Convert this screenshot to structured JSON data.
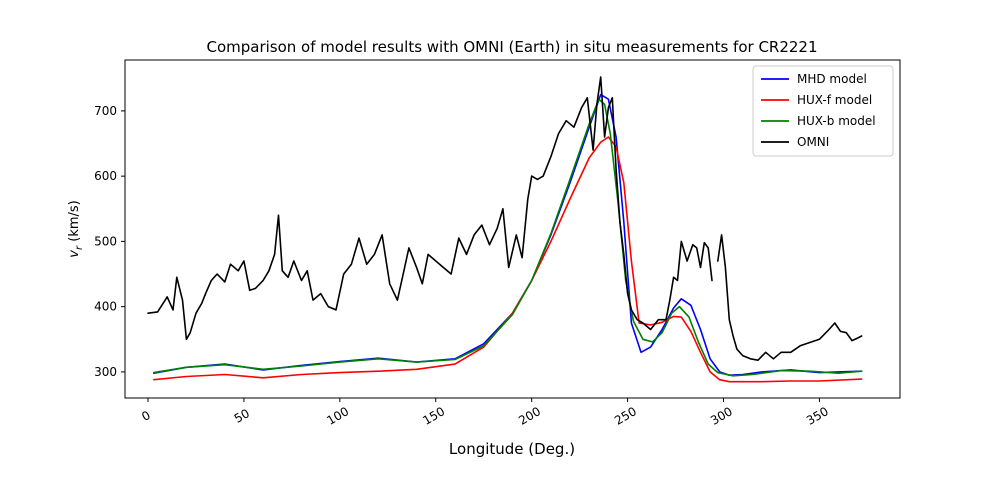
{
  "chart_data": {
    "type": "line",
    "title": "Comparison of model results with OMNI (Earth) in situ measurements for CR2221",
    "xlabel": "Longitude (Deg.)",
    "ylabel": "v_r (km/s)",
    "ylabel_main": "v",
    "ylabel_sub": "r",
    "ylabel_rest": " (km/s)",
    "xlim": [
      -12,
      392
    ],
    "ylim": [
      260,
      778
    ],
    "xticks": [
      0,
      50,
      100,
      150,
      200,
      250,
      300,
      350
    ],
    "yticks": [
      300,
      400,
      500,
      600,
      700
    ],
    "legend_position": "top-right",
    "grid": false,
    "series": [
      {
        "name": "MHD model",
        "color": "#0000ff",
        "x": [
          3,
          20,
          40,
          60,
          80,
          100,
          120,
          140,
          160,
          175,
          190,
          200,
          210,
          220,
          230,
          236,
          240,
          244,
          248,
          252,
          257,
          262,
          268,
          274,
          278,
          283,
          288,
          293,
          298,
          303,
          310,
          320,
          335,
          350,
          372
        ],
        "y": [
          298,
          307,
          312,
          303,
          310,
          316,
          321,
          315,
          320,
          343,
          390,
          440,
          510,
          590,
          675,
          725,
          718,
          660,
          530,
          375,
          330,
          338,
          365,
          398,
          412,
          402,
          365,
          320,
          300,
          295,
          296,
          300,
          303,
          299,
          301
        ]
      },
      {
        "name": "HUX-f model",
        "color": "#ff0000",
        "x": [
          3,
          20,
          40,
          60,
          80,
          100,
          120,
          140,
          160,
          175,
          190,
          200,
          210,
          220,
          230,
          236,
          240,
          244,
          248,
          252,
          256,
          262,
          268,
          274,
          278,
          283,
          288,
          293,
          298,
          303,
          310,
          320,
          335,
          350,
          372
        ],
        "y": [
          288,
          293,
          296,
          291,
          296,
          299,
          301,
          304,
          312,
          338,
          390,
          440,
          500,
          565,
          628,
          652,
          660,
          645,
          590,
          470,
          375,
          372,
          376,
          385,
          384,
          362,
          330,
          300,
          288,
          285,
          285,
          285,
          286,
          286,
          289
        ]
      },
      {
        "name": "HUX-b model",
        "color": "#008000",
        "x": [
          3,
          20,
          40,
          60,
          80,
          100,
          120,
          140,
          160,
          175,
          190,
          200,
          210,
          220,
          230,
          235,
          238,
          241,
          245,
          249,
          253,
          258,
          263,
          268,
          273,
          277,
          282,
          287,
          292,
          297,
          305,
          315,
          330,
          345,
          360,
          372
        ],
        "y": [
          299,
          307,
          311,
          304,
          309,
          315,
          320,
          315,
          319,
          340,
          388,
          440,
          512,
          595,
          680,
          718,
          710,
          665,
          560,
          440,
          378,
          350,
          346,
          360,
          390,
          400,
          384,
          345,
          312,
          299,
          294,
          296,
          302,
          301,
          298,
          301
        ]
      },
      {
        "name": "OMNI",
        "color": "#000000",
        "x": [
          [
            0,
            5,
            10,
            13,
            15,
            18,
            20,
            22,
            25,
            28,
            30,
            33,
            36,
            40,
            43,
            47,
            50,
            53,
            56,
            60,
            63,
            66,
            68,
            70,
            73,
            76,
            80,
            83,
            86,
            90,
            94,
            98,
            102,
            106,
            110,
            114,
            118,
            122,
            126,
            130,
            133,
            136,
            140,
            143,
            146,
            150,
            154,
            158,
            162,
            166,
            170,
            174,
            178,
            182,
            185,
            188,
            192,
            195,
            198,
            200,
            203,
            206,
            210,
            214,
            218,
            222,
            226,
            229,
            232,
            234,
            236,
            238,
            240,
            242,
            244,
            246,
            248,
            250,
            252,
            255,
            258,
            262,
            266,
            270,
            272,
            274,
            276,
            278,
            281,
            284,
            286,
            288,
            290,
            292,
            294
          ],
          [
            297,
            299,
            301,
            303,
            305,
            307,
            310,
            314,
            318,
            322,
            326,
            330,
            335,
            340,
            345,
            350,
            355,
            358,
            361,
            364,
            367,
            370,
            372
          ]
        ],
        "y": [
          [
            390,
            392,
            415,
            395,
            445,
            410,
            350,
            360,
            390,
            405,
            420,
            440,
            450,
            438,
            465,
            455,
            470,
            425,
            428,
            440,
            455,
            480,
            540,
            455,
            445,
            470,
            440,
            455,
            410,
            420,
            400,
            395,
            450,
            465,
            505,
            465,
            480,
            510,
            435,
            410,
            450,
            490,
            460,
            435,
            480,
            470,
            460,
            450,
            505,
            480,
            510,
            525,
            495,
            520,
            550,
            460,
            510,
            475,
            565,
            600,
            595,
            600,
            630,
            665,
            685,
            675,
            705,
            720,
            640,
            710,
            752,
            660,
            705,
            720,
            610,
            530,
            480,
            420,
            395,
            380,
            375,
            365,
            380,
            380,
            410,
            445,
            440,
            500,
            470,
            495,
            490,
            460,
            498,
            490,
            440
          ],
          [
            470,
            510,
            460,
            380,
            355,
            335,
            325,
            320,
            318,
            330,
            320,
            330,
            330,
            340,
            345,
            350,
            365,
            375,
            362,
            360,
            348,
            352,
            355
          ]
        ]
      }
    ]
  }
}
